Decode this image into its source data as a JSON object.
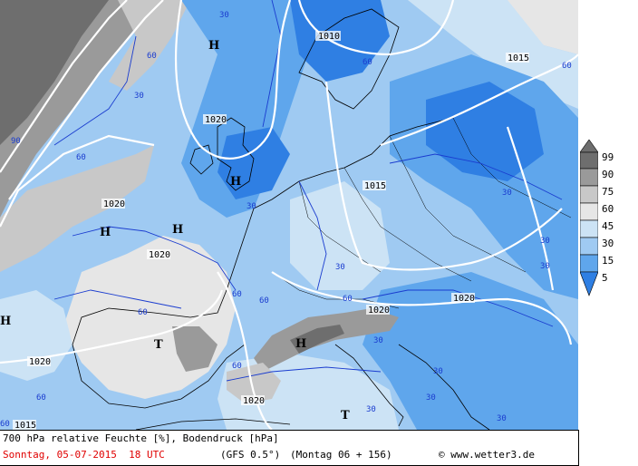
{
  "map": {
    "pressure_highs": [
      "H",
      "H",
      "H",
      "H",
      "H",
      "H"
    ],
    "pressure_lows": [
      "T",
      "T"
    ],
    "isobar_labels": [
      "1010",
      "1015",
      "1020",
      "1020",
      "1015",
      "1020",
      "1020",
      "1020",
      "1020",
      "1015",
      "1020"
    ],
    "humidity_labels": [
      "30",
      "60",
      "60",
      "30",
      "60",
      "60",
      "30",
      "30",
      "30",
      "30",
      "30",
      "60",
      "60",
      "60",
      "60",
      "30",
      "30",
      "30",
      "60",
      "30",
      "30",
      "60",
      "90",
      "60"
    ],
    "colors": {
      "h99": "#6e6e6e",
      "h90": "#9a9a9a",
      "h75": "#c8c8c8",
      "h60": "#e6e6e6",
      "h45": "#cce3f5",
      "h30": "#9fcaf2",
      "h15": "#5fa6ec",
      "h5": "#2f7fe3",
      "coast": "#000000",
      "isobar": "#ffffff",
      "humidity_contour": "#1a3ccf"
    }
  },
  "legend": {
    "levels": [
      "99",
      "90",
      "75",
      "60",
      "45",
      "30",
      "15",
      "5"
    ]
  },
  "footer": {
    "title": "700 hPa relative Feuchte [%], Bodendruck [hPa]",
    "date": "Sonntag, 05-07-2015  18 UTC",
    "model": "(GFS 0.5°)",
    "forecast": "(Montag 06 + 156)",
    "copyright": "© www.wetter3.de"
  }
}
